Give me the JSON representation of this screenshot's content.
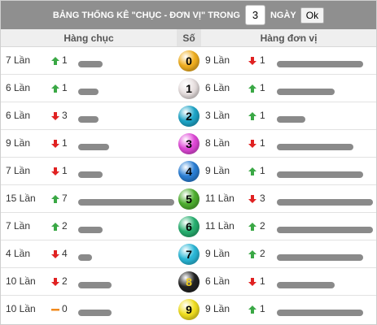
{
  "title": {
    "prefix": "BẢNG THỐNG KÊ \"CHỤC - ĐƠN VỊ\" TRONG",
    "days_value": "3",
    "suffix": "NGÀY",
    "ok_label": "Ok"
  },
  "headers": {
    "tens": "Hàng chục",
    "number": "Số",
    "units": "Hàng đơn vị"
  },
  "arrow_icons": {
    "up": "green-up-arrow",
    "down": "red-down-arrow",
    "flat": "orange-dash"
  },
  "colors": {
    "up": "#3aa845",
    "down": "#e02222",
    "flat": "#f08a1d",
    "bar": "#8a8a8a"
  },
  "rows": [
    {
      "digit": "0",
      "ball_color": "#f2b020",
      "tens": {
        "times": "7 Lần",
        "trend": "up",
        "delta": "1",
        "level": 0.25
      },
      "units": {
        "times": "9 Lần",
        "trend": "down",
        "delta": "1",
        "level": 0.9
      }
    },
    {
      "digit": "1",
      "ball_color": "#e8e0e0",
      "tens": {
        "times": "6 Lần",
        "trend": "up",
        "delta": "1",
        "level": 0.21
      },
      "units": {
        "times": "6 Lần",
        "trend": "up",
        "delta": "1",
        "level": 0.6
      }
    },
    {
      "digit": "2",
      "ball_color": "#1ea6c9",
      "tens": {
        "times": "6 Lần",
        "trend": "down",
        "delta": "3",
        "level": 0.21
      },
      "units": {
        "times": "3 Lần",
        "trend": "up",
        "delta": "1",
        "level": 0.3
      }
    },
    {
      "digit": "3",
      "ball_color": "#e048d8",
      "tens": {
        "times": "9 Lần",
        "trend": "down",
        "delta": "1",
        "level": 0.32
      },
      "units": {
        "times": "8 Lần",
        "trend": "down",
        "delta": "1",
        "level": 0.8
      }
    },
    {
      "digit": "4",
      "ball_color": "#2a7fd6",
      "tens": {
        "times": "7 Lần",
        "trend": "down",
        "delta": "1",
        "level": 0.25
      },
      "units": {
        "times": "9 Lần",
        "trend": "up",
        "delta": "1",
        "level": 0.9
      }
    },
    {
      "digit": "5",
      "ball_color": "#4fb030",
      "tens": {
        "times": "15 Lần",
        "trend": "up",
        "delta": "7",
        "level": 1.0
      },
      "units": {
        "times": "11 Lần",
        "trend": "down",
        "delta": "3",
        "level": 1.0
      }
    },
    {
      "digit": "6",
      "ball_color": "#27b070",
      "tens": {
        "times": "7 Lần",
        "trend": "up",
        "delta": "2",
        "level": 0.25
      },
      "units": {
        "times": "11 Lần",
        "trend": "up",
        "delta": "2",
        "level": 1.0
      }
    },
    {
      "digit": "7",
      "ball_color": "#2ab8d8",
      "tens": {
        "times": "4 Lần",
        "trend": "down",
        "delta": "4",
        "level": 0.14
      },
      "units": {
        "times": "9 Lần",
        "trend": "up",
        "delta": "2",
        "level": 0.9
      }
    },
    {
      "digit": "8",
      "ball_color": "#222222",
      "tens": {
        "times": "10 Lần",
        "trend": "down",
        "delta": "2",
        "level": 0.35
      },
      "units": {
        "times": "6 Lần",
        "trend": "down",
        "delta": "1",
        "level": 0.6
      }
    },
    {
      "digit": "9",
      "ball_color": "#f2e020",
      "tens": {
        "times": "10 Lần",
        "trend": "flat",
        "delta": "0",
        "level": 0.35
      },
      "units": {
        "times": "9 Lần",
        "trend": "up",
        "delta": "1",
        "level": 0.9
      }
    }
  ]
}
